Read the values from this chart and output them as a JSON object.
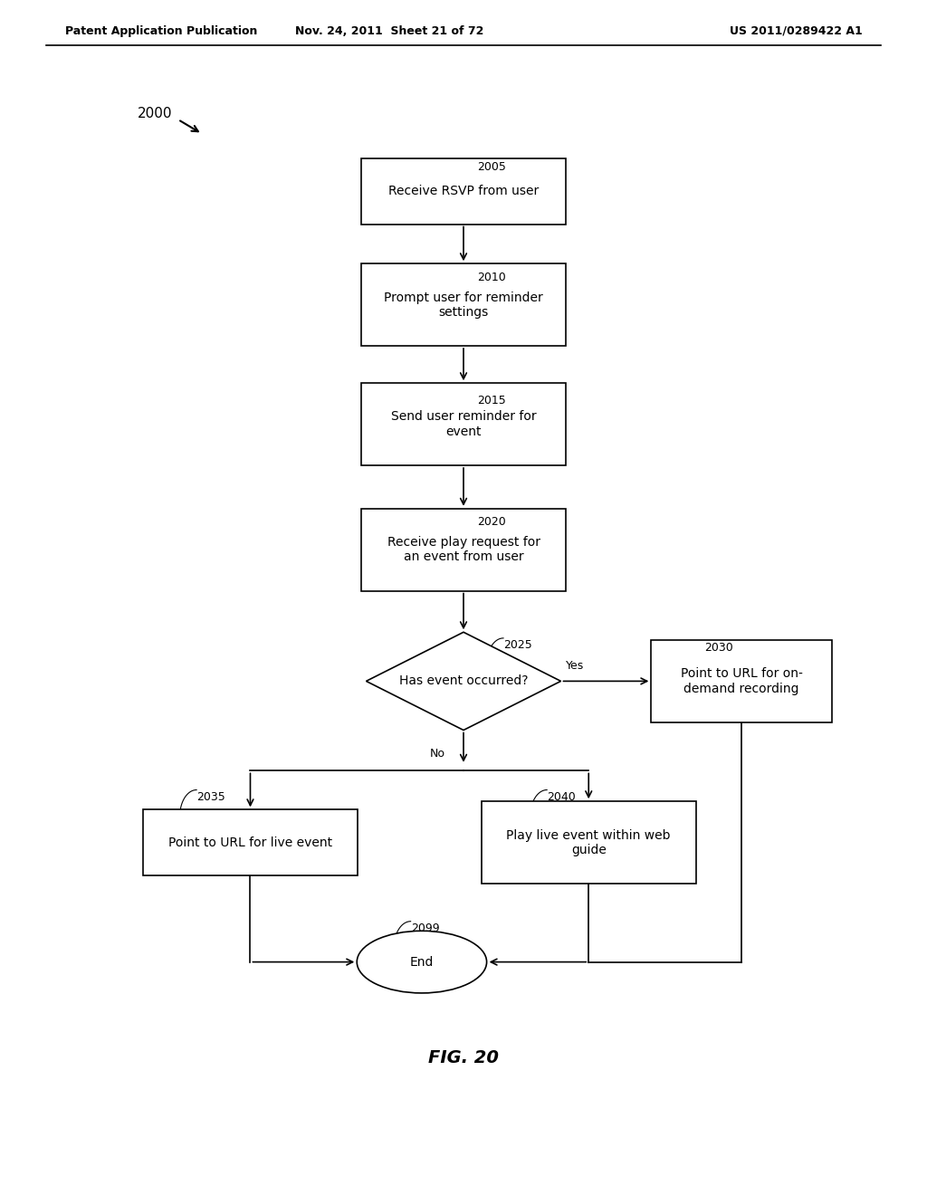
{
  "title": "FIG. 20",
  "header_left": "Patent Application Publication",
  "header_mid": "Nov. 24, 2011  Sheet 21 of 72",
  "header_right": "US 2011/0289422 A1",
  "fig_label": "2000",
  "background": "#ffffff",
  "font_size": 10
}
